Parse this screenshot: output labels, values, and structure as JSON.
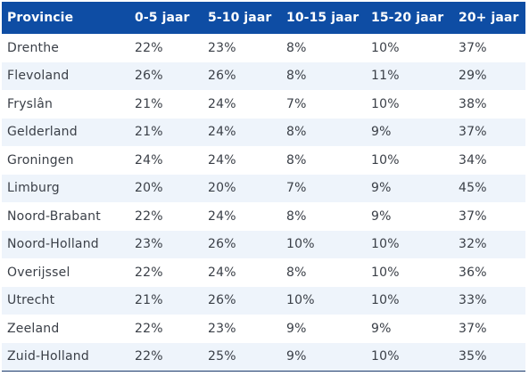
{
  "table": {
    "headers": [
      "Provincie",
      "0-5 jaar",
      "5-10 jaar",
      "10-15 jaar",
      "15-20 jaar",
      "20+ jaar"
    ],
    "rows": [
      [
        "Drenthe",
        "22%",
        "23%",
        "8%",
        "10%",
        "37%"
      ],
      [
        "Flevoland",
        "26%",
        "26%",
        "8%",
        "11%",
        "29%"
      ],
      [
        "Fryslân",
        "21%",
        "24%",
        "7%",
        "10%",
        "38%"
      ],
      [
        "Gelderland",
        "21%",
        "24%",
        "8%",
        "9%",
        "37%"
      ],
      [
        "Groningen",
        "24%",
        "24%",
        "8%",
        "10%",
        "34%"
      ],
      [
        "Limburg",
        "20%",
        "20%",
        "7%",
        "9%",
        "45%"
      ],
      [
        "Noord-Brabant",
        "22%",
        "24%",
        "8%",
        "9%",
        "37%"
      ],
      [
        "Noord-Holland",
        "23%",
        "26%",
        "10%",
        "10%",
        "32%"
      ],
      [
        "Overijssel",
        "22%",
        "24%",
        "8%",
        "10%",
        "36%"
      ],
      [
        "Utrecht",
        "21%",
        "26%",
        "10%",
        "10%",
        "33%"
      ],
      [
        "Zeeland",
        "22%",
        "23%",
        "9%",
        "9%",
        "37%"
      ],
      [
        "Zuid-Holland",
        "22%",
        "25%",
        "9%",
        "10%",
        "35%"
      ]
    ]
  },
  "colors": {
    "header_bg": "#0e4da4",
    "header_text": "#ffffff",
    "stripe_bg": "#eef4fb",
    "cell_text": "#3a3f47"
  }
}
